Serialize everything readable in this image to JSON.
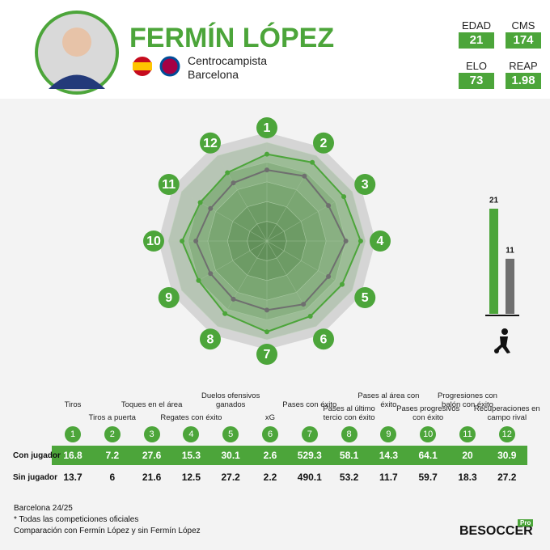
{
  "player": {
    "name": "FERMÍN LÓPEZ",
    "position": "Centrocampista",
    "club": "Barcelona"
  },
  "info": [
    {
      "label": "EDAD",
      "value": 21
    },
    {
      "label": "CMS",
      "value": 174
    },
    {
      "label": "ELO",
      "value": 73
    },
    {
      "label": "REAP",
      "value": 1.98
    }
  ],
  "chart_data": [
    {
      "type": "radar",
      "categories": [
        "1",
        "2",
        "3",
        "4",
        "5",
        "6",
        "7",
        "8",
        "9",
        "10",
        "11",
        "12"
      ],
      "ylim": [
        0,
        100
      ],
      "series": [
        {
          "name": "Con jugador",
          "color": "#4ca53a",
          "values": [
            88,
            92,
            90,
            95,
            88,
            88,
            92,
            85,
            80,
            86,
            78,
            80
          ]
        },
        {
          "name": "Sin jugador",
          "color": "#6f6f6f",
          "values": [
            72,
            76,
            72,
            80,
            72,
            74,
            70,
            68,
            66,
            72,
            66,
            68
          ]
        }
      ]
    },
    {
      "type": "bar",
      "categories": [
        null,
        null
      ],
      "values": [
        21,
        11
      ],
      "colors": [
        "#4ca53a",
        "#6f6f6f"
      ],
      "ylim": [
        0,
        21
      ]
    }
  ],
  "table": {
    "labels": [
      "Tiros",
      "Tiros a puerta",
      "Toques en el área",
      "Regates con éxito",
      "Duelos ofensivos ganados",
      "xG",
      "Pases con éxito",
      "Pases al último tercio con éxito",
      "Pases al área con éxito",
      "Pases progresivos con éxito",
      "Progresiones con balón con éxito",
      "Recuperaciones en campo rival"
    ],
    "rows": [
      {
        "name": "Con jugador",
        "values": [
          16.8,
          7.2,
          27.6,
          15.3,
          30.1,
          2.6,
          529.3,
          58.1,
          14.3,
          64.1,
          20,
          30.9
        ]
      },
      {
        "name": "Sin jugador",
        "values": [
          13.7,
          6,
          21.6,
          12.5,
          27.2,
          2.2,
          490.1,
          53.2,
          11.7,
          59.7,
          18.3,
          27.2
        ]
      }
    ]
  },
  "footer": [
    "Barcelona 24/25",
    "* Todas las competiciones oficiales",
    "Comparación con Fermín López y sin Fermín López"
  ],
  "brand": {
    "name": "BESOCCER",
    "tag": "Pro"
  }
}
